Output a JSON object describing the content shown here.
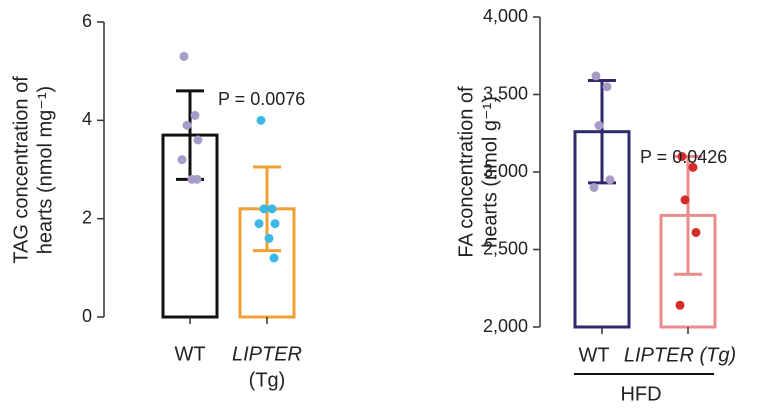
{
  "chart_data": [
    {
      "type": "bar",
      "ylabel": [
        "TAG concentration of",
        "hearts (nmol mg⁻¹)"
      ],
      "categories": [
        [
          "WT"
        ],
        [
          "LIPTER",
          "(Tg)"
        ]
      ],
      "values": [
        3.7,
        2.2
      ],
      "errors": [
        0.9,
        0.85
      ],
      "colors": [
        "#111111",
        "#f0a030"
      ],
      "points": [
        [
          5.3,
          4.1,
          3.9,
          3.6,
          3.2,
          2.8,
          2.8
        ],
        [
          4.0,
          2.2,
          2.2,
          1.9,
          1.9,
          1.6,
          1.2
        ]
      ],
      "point_colors": [
        "#a99bc9",
        "#3bb8e8"
      ],
      "ylim": [
        0,
        6
      ],
      "yticks": [
        0,
        2,
        4,
        6
      ],
      "annotation": "P = 0.0076"
    },
    {
      "type": "bar",
      "ylabel": [
        "FA concentration of",
        "hearts (nmol g⁻¹)"
      ],
      "categories": [
        [
          "WT"
        ],
        [
          "LIPTER (Tg)"
        ]
      ],
      "group_label": "HFD",
      "values": [
        3260,
        2720
      ],
      "errors": [
        330,
        380
      ],
      "colors": [
        "#2e2a6b",
        "#ea8c8c"
      ],
      "points": [
        [
          3620,
          3550,
          3300,
          2950,
          2900
        ],
        [
          3100,
          3030,
          2820,
          2610,
          2140
        ]
      ],
      "point_colors": [
        "#a99bc9",
        "#d42b2b"
      ],
      "ylim": [
        2000,
        4000
      ],
      "yticks": [
        {
          "value": 2000,
          "label": "2,000"
        },
        {
          "value": 2500,
          "label": "2,500"
        },
        {
          "value": 3000,
          "label": "3,000"
        },
        {
          "value": 3500,
          "label": "3,500"
        },
        {
          "value": 4000,
          "label": "4,000"
        }
      ],
      "annotation": "P = 0.0426"
    }
  ]
}
